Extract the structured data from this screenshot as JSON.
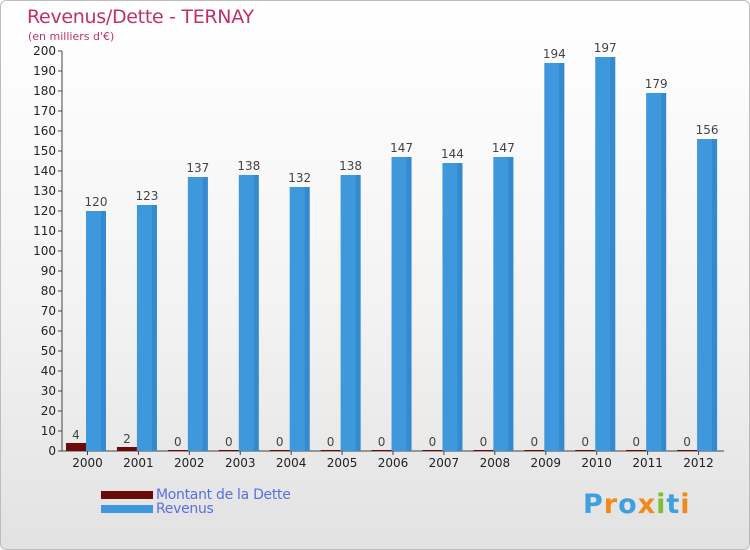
{
  "chart_data": {
    "type": "bar",
    "title": "Revenus/Dette - TERNAY",
    "subtitle": "(en milliers d'€)",
    "categories": [
      "2000",
      "2001",
      "2002",
      "2003",
      "2004",
      "2005",
      "2006",
      "2007",
      "2008",
      "2009",
      "2010",
      "2011",
      "2012"
    ],
    "series": [
      {
        "name": "Montant de la Dette",
        "color": "#6b0a0a",
        "values": [
          4,
          2,
          0,
          0,
          0,
          0,
          0,
          0,
          0,
          0,
          0,
          0,
          0
        ]
      },
      {
        "name": "Revenus",
        "color": "#3f97dc",
        "values": [
          120,
          123,
          137,
          138,
          132,
          138,
          147,
          144,
          147,
          194,
          197,
          179,
          156
        ]
      }
    ],
    "ylim": [
      0,
      200
    ],
    "ytick_step": 10,
    "grid": false,
    "legend_position": "bottom-left"
  },
  "logo": {
    "text": "Proxiti",
    "colors": [
      "#3fa0e0",
      "#f08a1c",
      "#3fa0e0",
      "#f08a1c",
      "#7cbf3a",
      "#3fa0e0",
      "#f08a1c"
    ]
  }
}
